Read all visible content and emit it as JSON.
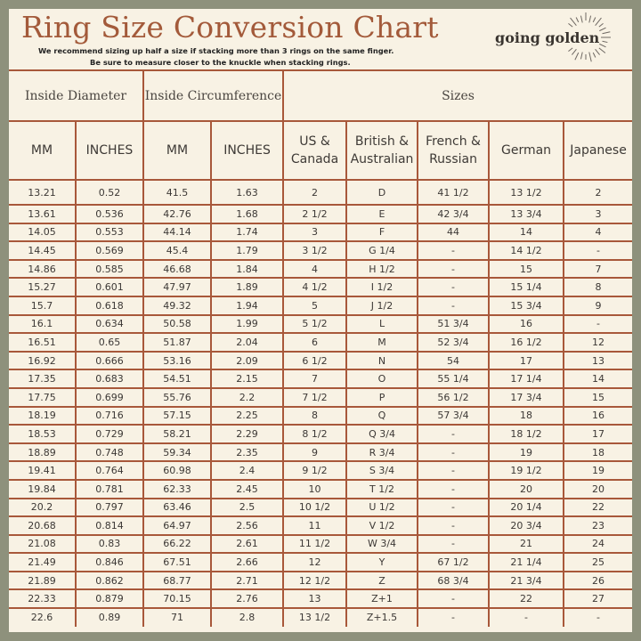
{
  "header": {
    "title": "Ring Size Conversion Chart",
    "note_line1": "We recommend sizing up half a size if stacking more than 3 rings on the same finger.",
    "note_line2": "Be sure to measure closer to the knuckle when stacking rings.",
    "logo_text": "going golden",
    "logo_icon": "sunburst-icon"
  },
  "colors": {
    "background": "#8e917c",
    "panel": "#f8f2e4",
    "title": "#a35a3a",
    "grid_lines": "#a8583a",
    "text": "#3c3835"
  },
  "table": {
    "group_headers": [
      {
        "label": "Inside Diameter",
        "colspan": 2
      },
      {
        "label": "Inside Circumference",
        "colspan": 2
      },
      {
        "label": "Sizes",
        "colspan": 5
      }
    ],
    "columns": [
      "MM",
      "INCHES",
      "MM",
      "INCHES",
      "US & Canada",
      "British & Australian",
      "French & Russian",
      "German",
      "Japanese"
    ],
    "columns_split": [
      [
        "MM"
      ],
      [
        "INCHES"
      ],
      [
        "MM"
      ],
      [
        "INCHES"
      ],
      [
        "US &",
        "Canada"
      ],
      [
        "British &",
        "Australian"
      ],
      [
        "French &",
        "Russian"
      ],
      [
        "German"
      ],
      [
        "Japanese"
      ]
    ],
    "rows": [
      [
        "13.21",
        "0.52",
        "41.5",
        "1.63",
        "2",
        "D",
        "41 1/2",
        "13 1/2",
        "2"
      ],
      [
        "13.61",
        "0.536",
        "42.76",
        "1.68",
        "2 1/2",
        "E",
        "42 3/4",
        "13 3/4",
        "3"
      ],
      [
        "14.05",
        "0.553",
        "44.14",
        "1.74",
        "3",
        "F",
        "44",
        "14",
        "4"
      ],
      [
        "14.45",
        "0.569",
        "45.4",
        "1.79",
        "3 1/2",
        "G 1/4",
        "-",
        "14 1/2",
        "-"
      ],
      [
        "14.86",
        "0.585",
        "46.68",
        "1.84",
        "4",
        "H 1/2",
        "-",
        "15",
        "7"
      ],
      [
        "15.27",
        "0.601",
        "47.97",
        "1.89",
        "4 1/2",
        "I 1/2",
        "-",
        "15 1/4",
        "8"
      ],
      [
        "15.7",
        "0.618",
        "49.32",
        "1.94",
        "5",
        "J 1/2",
        "-",
        "15 3/4",
        "9"
      ],
      [
        "16.1",
        "0.634",
        "50.58",
        "1.99",
        "5 1/2",
        "L",
        "51 3/4",
        "16",
        "-"
      ],
      [
        "16.51",
        "0.65",
        "51.87",
        "2.04",
        "6",
        "M",
        "52 3/4",
        "16 1/2",
        "12"
      ],
      [
        "16.92",
        "0.666",
        "53.16",
        "2.09",
        "6 1/2",
        "N",
        "54",
        "17",
        "13"
      ],
      [
        "17.35",
        "0.683",
        "54.51",
        "2.15",
        "7",
        "O",
        "55 1/4",
        "17 1/4",
        "14"
      ],
      [
        "17.75",
        "0.699",
        "55.76",
        "2.2",
        "7 1/2",
        "P",
        "56 1/2",
        "17 3/4",
        "15"
      ],
      [
        "18.19",
        "0.716",
        "57.15",
        "2.25",
        "8",
        "Q",
        "57 3/4",
        "18",
        "16"
      ],
      [
        "18.53",
        "0.729",
        "58.21",
        "2.29",
        "8 1/2",
        "Q 3/4",
        "-",
        "18 1/2",
        "17"
      ],
      [
        "18.89",
        "0.748",
        "59.34",
        "2.35",
        "9",
        "R 3/4",
        "-",
        "19",
        "18"
      ],
      [
        "19.41",
        "0.764",
        "60.98",
        "2.4",
        "9 1/2",
        "S 3/4",
        "-",
        "19 1/2",
        "19"
      ],
      [
        "19.84",
        "0.781",
        "62.33",
        "2.45",
        "10",
        "T 1/2",
        "-",
        "20",
        "20"
      ],
      [
        "20.2",
        "0.797",
        "63.46",
        "2.5",
        "10 1/2",
        "U 1/2",
        "-",
        "20 1/4",
        "22"
      ],
      [
        "20.68",
        "0.814",
        "64.97",
        "2.56",
        "11",
        "V 1/2",
        "-",
        "20 3/4",
        "23"
      ],
      [
        "21.08",
        "0.83",
        "66.22",
        "2.61",
        "11 1/2",
        "W 3/4",
        "-",
        "21",
        "24"
      ],
      [
        "21.49",
        "0.846",
        "67.51",
        "2.66",
        "12",
        "Y",
        "67 1/2",
        "21 1/4",
        "25"
      ],
      [
        "21.89",
        "0.862",
        "68.77",
        "2.71",
        "12 1/2",
        "Z",
        "68 3/4",
        "21 3/4",
        "26"
      ],
      [
        "22.33",
        "0.879",
        "70.15",
        "2.76",
        "13",
        "Z+1",
        "-",
        "22",
        "27"
      ],
      [
        "22.6",
        "0.89",
        "71",
        "2.8",
        "13 1/2",
        "Z+1.5",
        "-",
        "-",
        "-"
      ]
    ]
  }
}
